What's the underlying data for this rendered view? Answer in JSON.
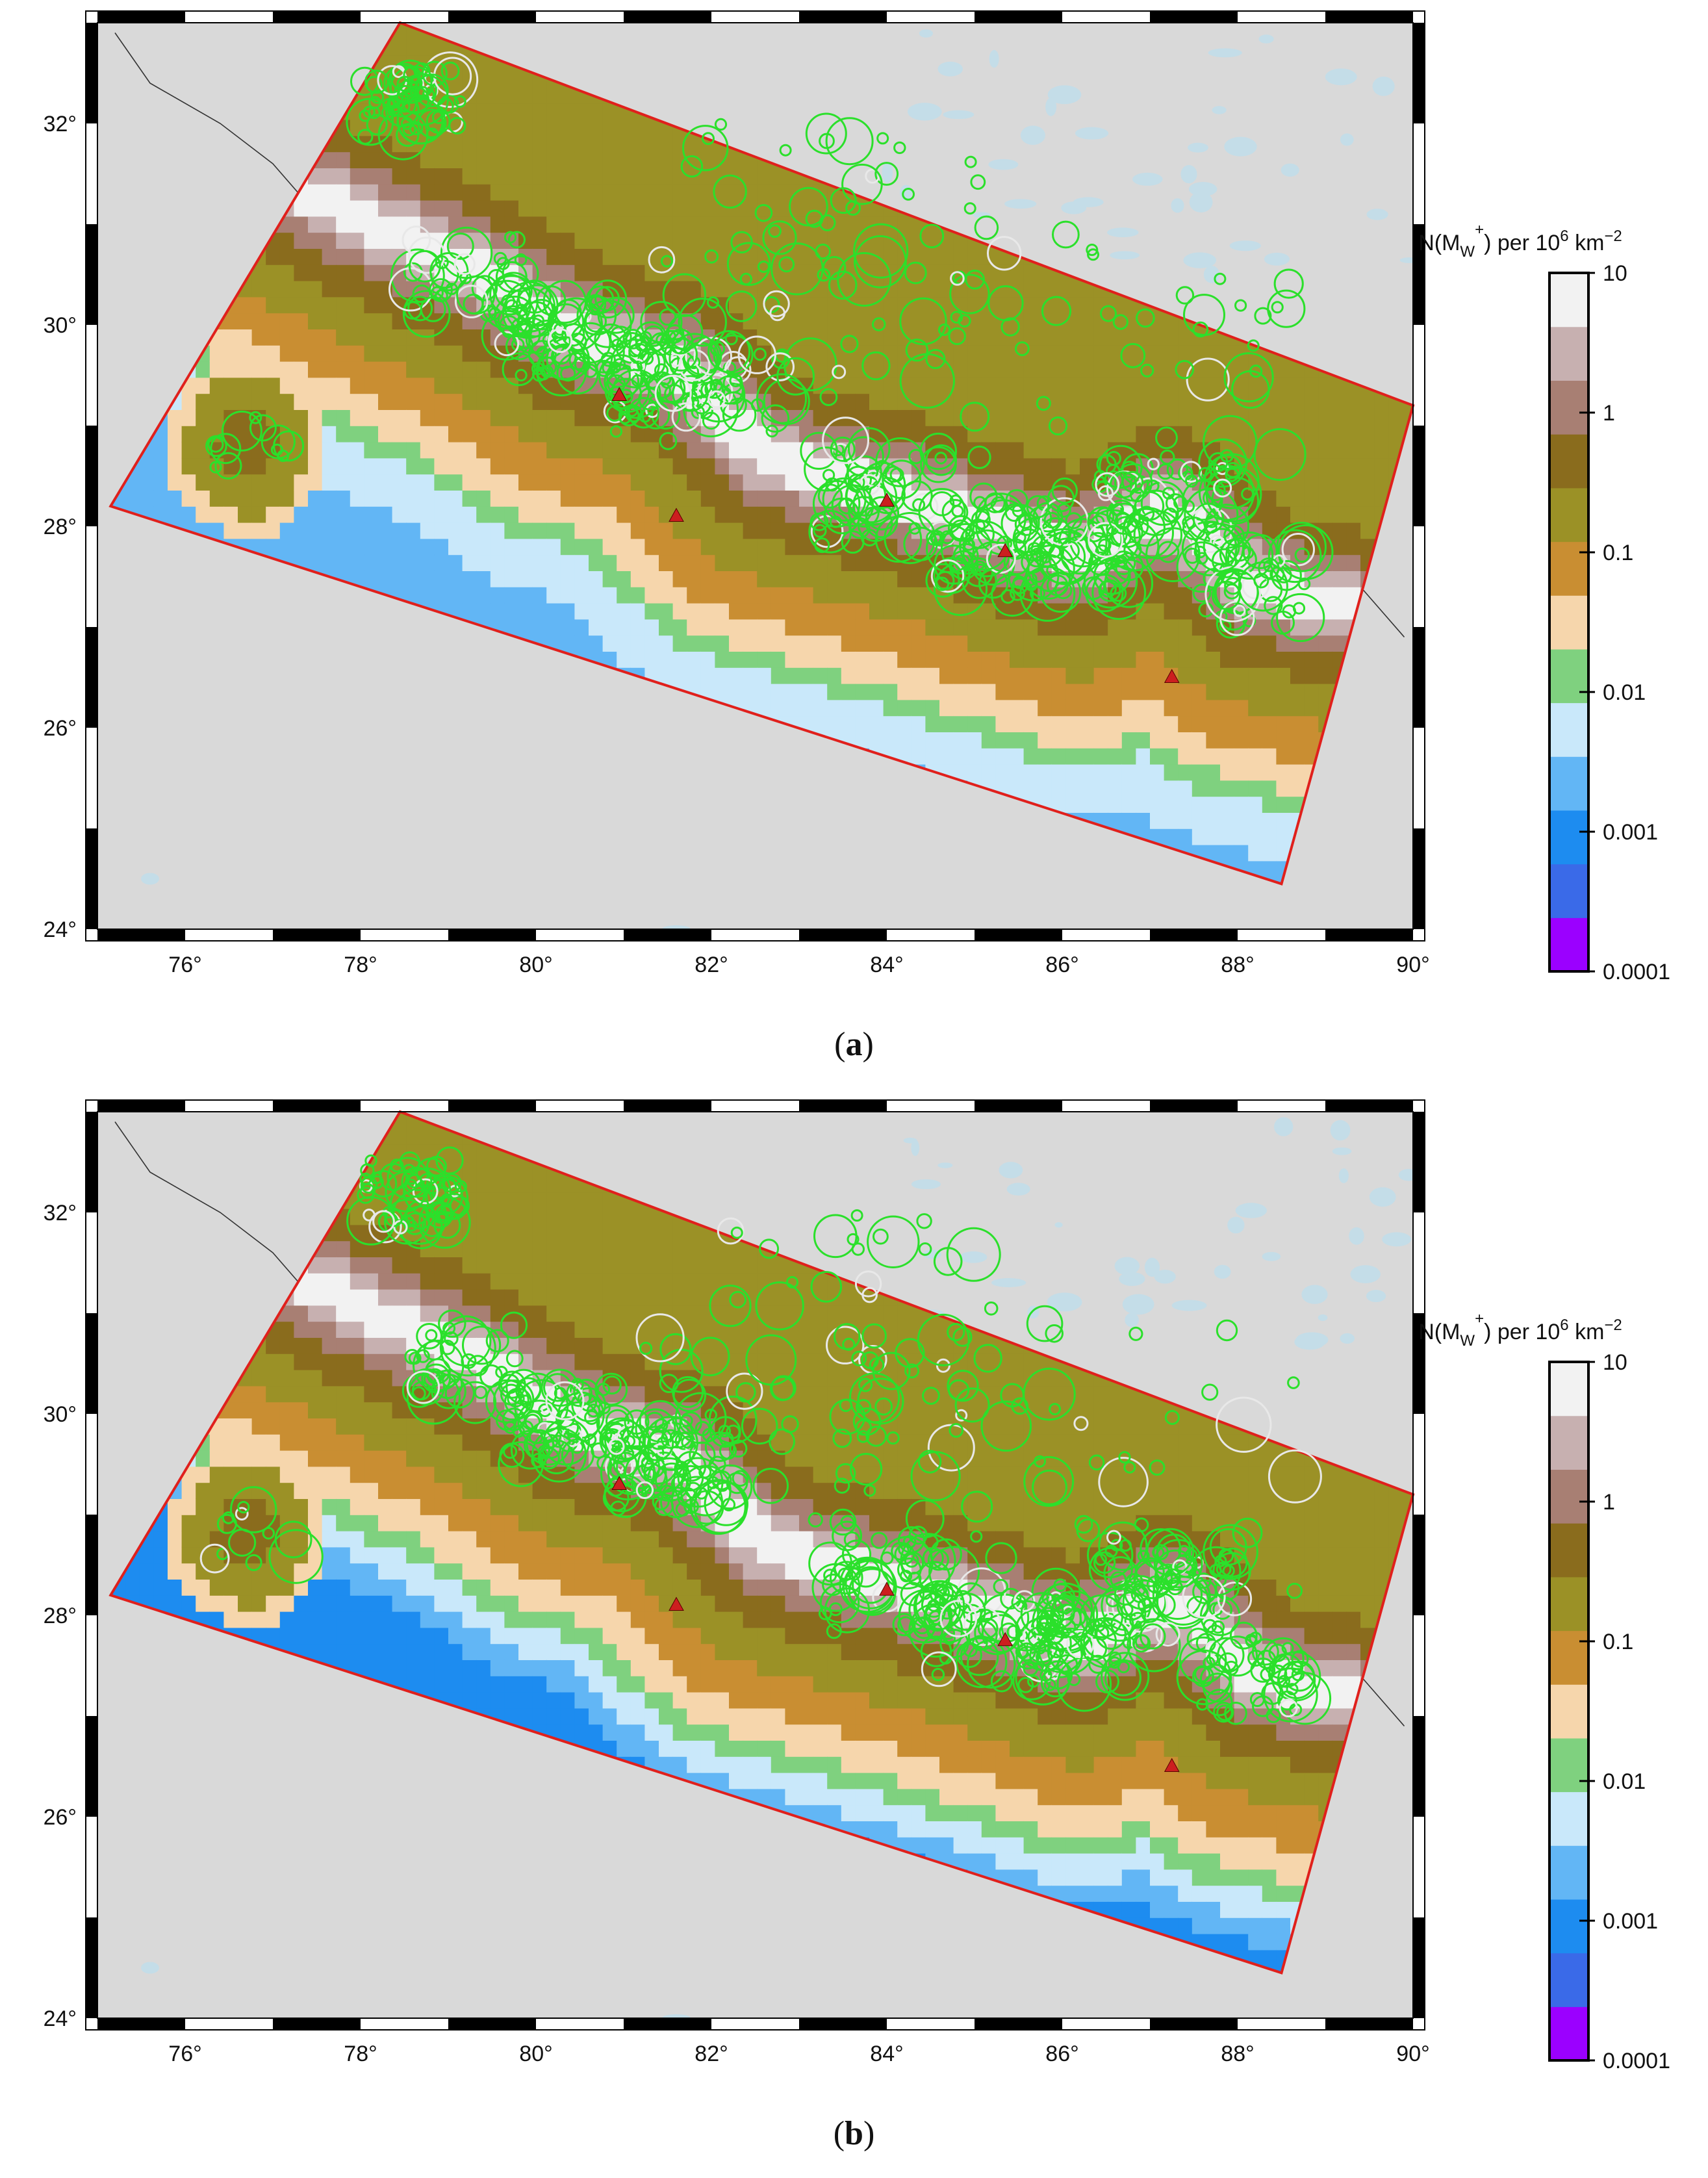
{
  "panels": [
    {
      "id": "a",
      "caption_letter": "a"
    },
    {
      "id": "b",
      "caption_letter": "b"
    }
  ],
  "map": {
    "lon_range": [
      75,
      90
    ],
    "lat_range": [
      24,
      33
    ],
    "lon_ticks": [
      "76°",
      "78°",
      "80°",
      "82°",
      "84°",
      "86°",
      "88°",
      "90°"
    ],
    "lat_ticks": [
      "24°",
      "26°",
      "28°",
      "30°",
      "32°"
    ],
    "background_color": "#d9d9d9",
    "region_outline_color": "#e0201c",
    "event_circle_color": "#2be02b",
    "highlight_circle_color": "#e8e8e8",
    "volcano_marker_color": "#cc1f1f",
    "region_polygon": [
      [
        78.45,
        33.0
      ],
      [
        90.0,
        29.2
      ],
      [
        88.5,
        24.45
      ],
      [
        75.15,
        28.2
      ]
    ]
  },
  "colorbar": {
    "title_main": "N(M",
    "title_sub": "W",
    "title_sup1": "+",
    "title_mid": ") per 10",
    "title_sup2": "6",
    "title_unit": " km",
    "title_sup3": "−2",
    "tick_labels": [
      "10",
      "1",
      "0.1",
      "0.01",
      "0.001",
      "0.0001"
    ],
    "tick_values": [
      10,
      1,
      0.1,
      0.01,
      0.001,
      0.0001
    ],
    "colors_bottom_to_top": [
      "#9b00ff",
      "#3a6ae8",
      "#1d8cf0",
      "#62b6f5",
      "#c9e8fa",
      "#7fd17f",
      "#f6d6ac",
      "#c98e32",
      "#9b9126",
      "#8a6c1d",
      "#a87f73",
      "#c7b0b0",
      "#f2f2f2"
    ]
  },
  "triangles": [
    {
      "lon": 80.95,
      "lat": 29.3
    },
    {
      "lon": 81.6,
      "lat": 28.1
    },
    {
      "lon": 84.0,
      "lat": 28.25
    },
    {
      "lon": 85.35,
      "lat": 27.75
    },
    {
      "lon": 87.25,
      "lat": 26.5
    }
  ]
}
